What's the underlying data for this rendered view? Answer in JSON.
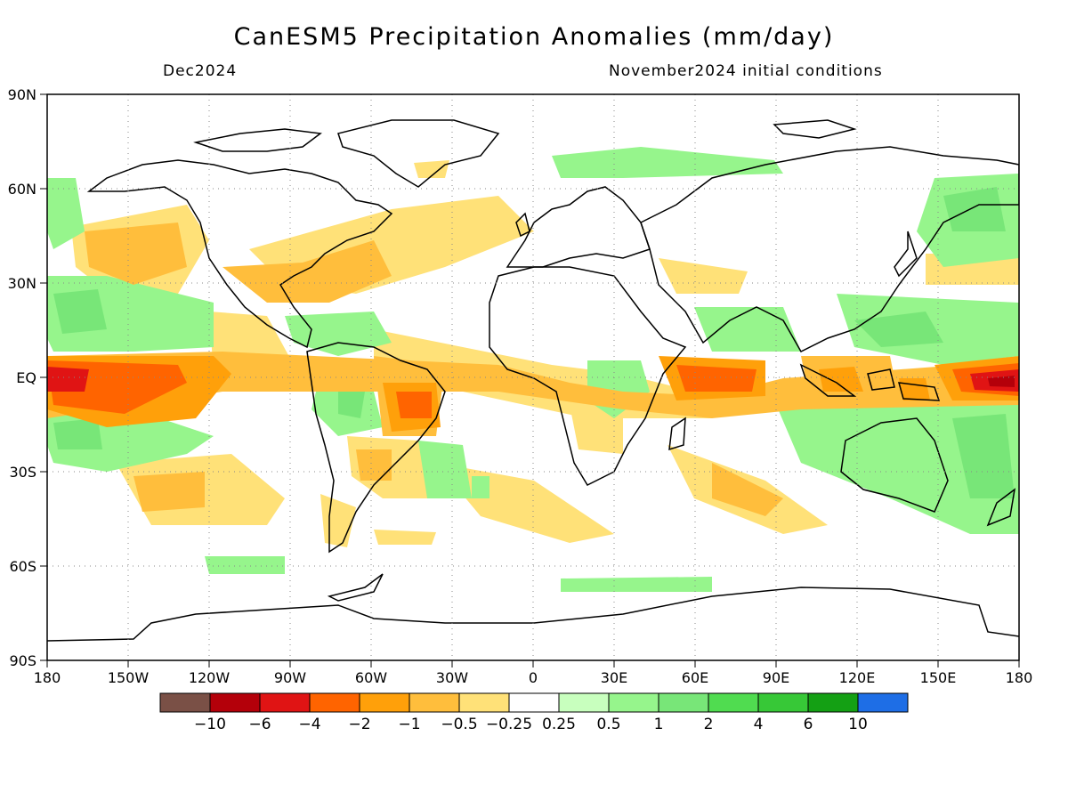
{
  "header": {
    "title": "CanESM5 Precipitation Anomalies (mm/day)",
    "valid_month": "Dec2024",
    "initial_conditions": "November2024 initial conditions"
  },
  "axes": {
    "lat_labels": [
      "90N",
      "60N",
      "30N",
      "EQ",
      "30S",
      "60S",
      "90S"
    ],
    "lon_labels": [
      "180",
      "150W",
      "120W",
      "90W",
      "60W",
      "30W",
      "0",
      "30E",
      "60E",
      "90E",
      "120E",
      "150E",
      "180"
    ]
  },
  "colorbar": {
    "colors": [
      "#7a5046",
      "#b4000a",
      "#e01414",
      "#ff6400",
      "#ffa00a",
      "#ffbe3c",
      "#ffe178",
      "#ffffff",
      "#c8ffbe",
      "#96f58c",
      "#78e678",
      "#50dc50",
      "#37c837",
      "#14a014",
      "#1e6ee6"
    ],
    "labels": [
      "−10",
      "−6",
      "−4",
      "−2",
      "−1",
      "−0.5",
      "−0.25",
      "0.25",
      "0.5",
      "1",
      "2",
      "4",
      "6",
      "10"
    ]
  },
  "colors": {
    "coastline": "#000000",
    "grid": "#888888"
  }
}
